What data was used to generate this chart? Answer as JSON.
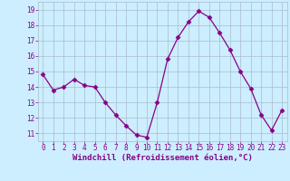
{
  "x": [
    0,
    1,
    2,
    3,
    4,
    5,
    6,
    7,
    8,
    9,
    10,
    11,
    12,
    13,
    14,
    15,
    16,
    17,
    18,
    19,
    20,
    21,
    22,
    23
  ],
  "y": [
    14.8,
    13.8,
    14.0,
    14.5,
    14.1,
    14.0,
    13.0,
    12.2,
    11.5,
    10.9,
    10.75,
    13.0,
    15.8,
    17.2,
    18.2,
    18.9,
    18.5,
    17.5,
    16.4,
    15.0,
    13.9,
    12.2,
    11.2,
    12.5
  ],
  "line_color": "#880088",
  "marker": "D",
  "marker_size": 2.5,
  "bg_color": "#cceeff",
  "grid_color": "#aabbcc",
  "xlabel": "Windchill (Refroidissement éolien,°C)",
  "ylim": [
    10.5,
    19.5
  ],
  "xlim": [
    -0.5,
    23.5
  ],
  "yticks": [
    11,
    12,
    13,
    14,
    15,
    16,
    17,
    18,
    19
  ],
  "xticks": [
    0,
    1,
    2,
    3,
    4,
    5,
    6,
    7,
    8,
    9,
    10,
    11,
    12,
    13,
    14,
    15,
    16,
    17,
    18,
    19,
    20,
    21,
    22,
    23
  ],
  "tick_color": "#880088",
  "label_color": "#880088",
  "tick_fontsize": 5.5,
  "xlabel_fontsize": 6.5
}
